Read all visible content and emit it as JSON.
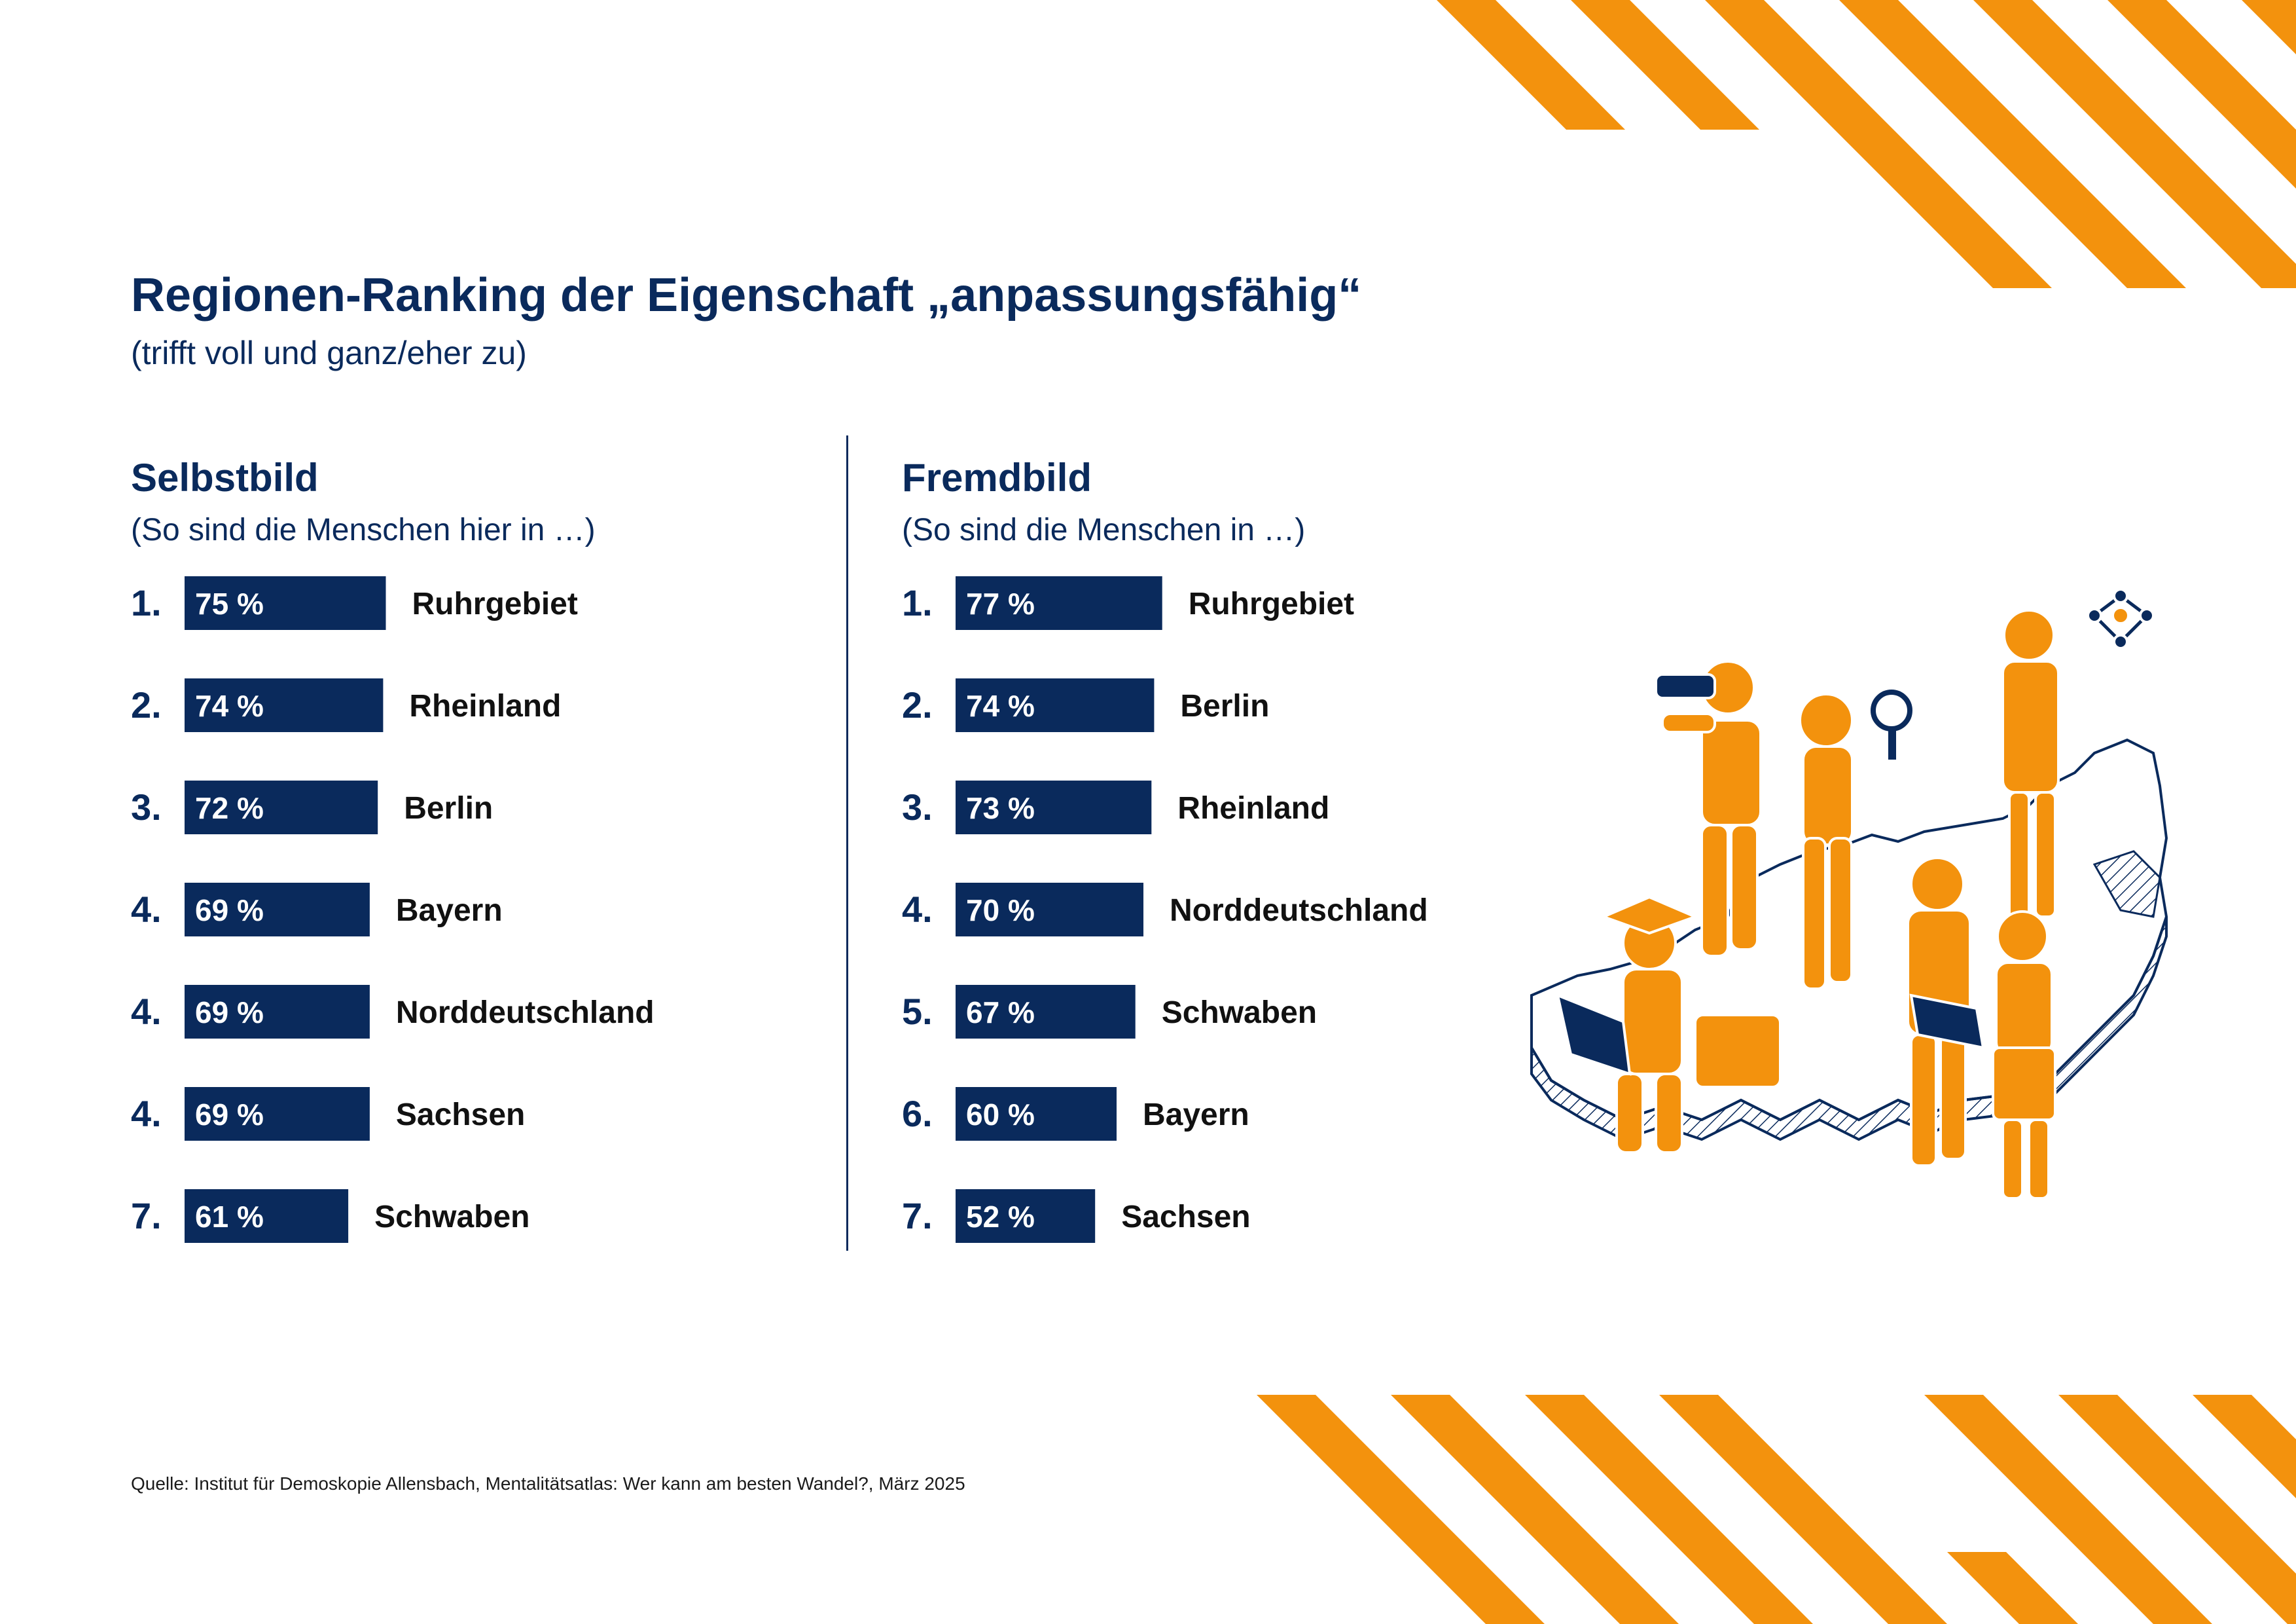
{
  "title": "Regionen-Ranking der Eigenschaft „anpassungsfähig“",
  "subtitle": "(trifft voll und ganz/eher zu)",
  "colors": {
    "navy": "#0a2a5c",
    "orange": "#f3920d",
    "black": "#111111"
  },
  "chart_data": [
    {
      "type": "bar",
      "title": "Selbstbild",
      "subtitle": "(So sind die Menschen hier in …)",
      "ranks": [
        "1.",
        "2.",
        "3.",
        "4.",
        "4.",
        "4.",
        "7."
      ],
      "categories": [
        "Ruhrgebiet",
        "Rheinland",
        "Berlin",
        "Bayern",
        "Norddeutschland",
        "Sachsen",
        "Schwaben"
      ],
      "values": [
        75,
        74,
        72,
        69,
        69,
        69,
        61
      ],
      "unit": "%",
      "labels": [
        "75 %",
        "74 %",
        "72 %",
        "69 %",
        "69 %",
        "69 %",
        "61 %"
      ]
    },
    {
      "type": "bar",
      "title": "Fremdbild",
      "subtitle": "(So sind die Menschen in …)",
      "ranks": [
        "1.",
        "2.",
        "3.",
        "4.",
        "5.",
        "6.",
        "7."
      ],
      "categories": [
        "Ruhrgebiet",
        "Berlin",
        "Rheinland",
        "Norddeutschland",
        "Schwaben",
        "Bayern",
        "Sachsen"
      ],
      "values": [
        77,
        74,
        73,
        70,
        67,
        60,
        52
      ],
      "unit": "%",
      "labels": [
        "77 %",
        "74 %",
        "73 %",
        "70 %",
        "67 %",
        "60 %",
        "52 %"
      ]
    }
  ],
  "source": "Quelle: Institut für Demoskopie Allensbach, Mentalitätsatlas: Wer kann am besten Wandel?, März 2025",
  "illustration": {
    "icon": "germany-map-people-illustration"
  }
}
